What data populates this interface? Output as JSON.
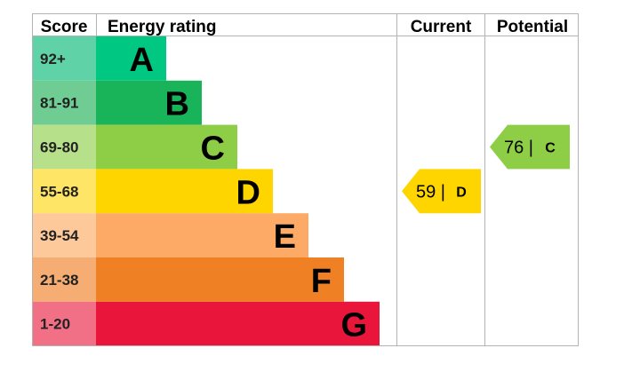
{
  "headers": {
    "score": "Score",
    "rating": "Energy rating",
    "current": "Current",
    "potential": "Potential"
  },
  "chart_data": {
    "type": "bar",
    "bands": [
      {
        "letter": "A",
        "range": "92+",
        "color": "#00c781",
        "score_bg": "#5fd3a7"
      },
      {
        "letter": "B",
        "range": "81-91",
        "color": "#19b459",
        "score_bg": "#6fcd93"
      },
      {
        "letter": "C",
        "range": "69-80",
        "color": "#8dce46",
        "score_bg": "#b7e08b"
      },
      {
        "letter": "D",
        "range": "55-68",
        "color": "#ffd500",
        "score_bg": "#ffe566"
      },
      {
        "letter": "E",
        "range": "39-54",
        "color": "#fcaa65",
        "score_bg": "#fdc99b"
      },
      {
        "letter": "F",
        "range": "21-38",
        "color": "#ef8023",
        "score_bg": "#f5ad73"
      },
      {
        "letter": "G",
        "range": "1-20",
        "color": "#e9153b",
        "score_bg": "#f27086"
      }
    ],
    "current": {
      "value": 59,
      "band": "D",
      "label": "59 |",
      "color": "#ffd500"
    },
    "potential": {
      "value": 76,
      "band": "C",
      "label": "76 |",
      "color": "#8dce46"
    }
  }
}
